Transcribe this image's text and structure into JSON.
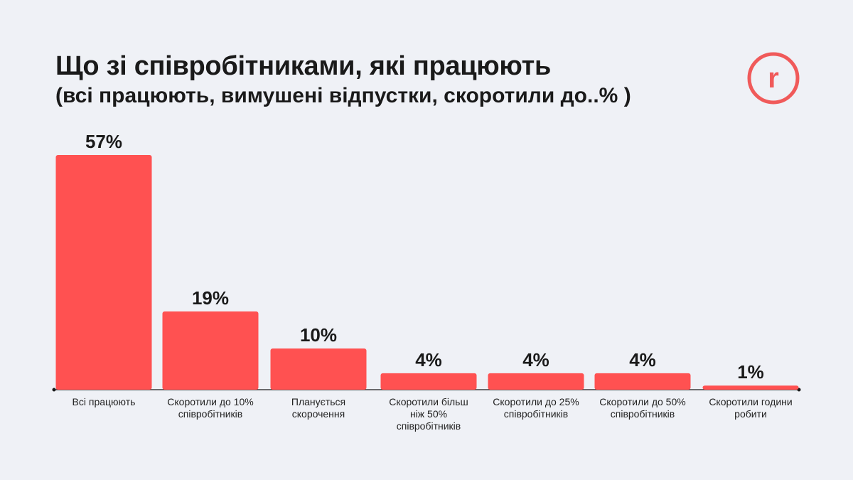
{
  "title": "Що зі співробітниками, які працюють",
  "subtitle": "(всі працюють, вимушені відпустки, скоротили до..% )",
  "logo": {
    "letter": "r",
    "color": "#f05a5a"
  },
  "chart_data": {
    "type": "bar",
    "bar_color": "#ff5151",
    "categories": [
      [
        "Всі працюють"
      ],
      [
        "Скоротили до 10%",
        "співробітників"
      ],
      [
        "Планується",
        "скорочення"
      ],
      [
        "Скоротили більш",
        "ніж 50%",
        "співробітників"
      ],
      [
        "Скоротили до 25%",
        "співробітників"
      ],
      [
        "Скоротили до 50%",
        "співробітників"
      ],
      [
        "Скоротили години",
        "робити"
      ]
    ],
    "values": [
      57,
      19,
      10,
      4,
      4,
      4,
      1
    ],
    "value_labels": [
      "57%",
      "19%",
      "10%",
      "4%",
      "4%",
      "4%",
      "1%"
    ],
    "ylim": [
      0,
      57
    ],
    "grid": false,
    "legend": false
  }
}
